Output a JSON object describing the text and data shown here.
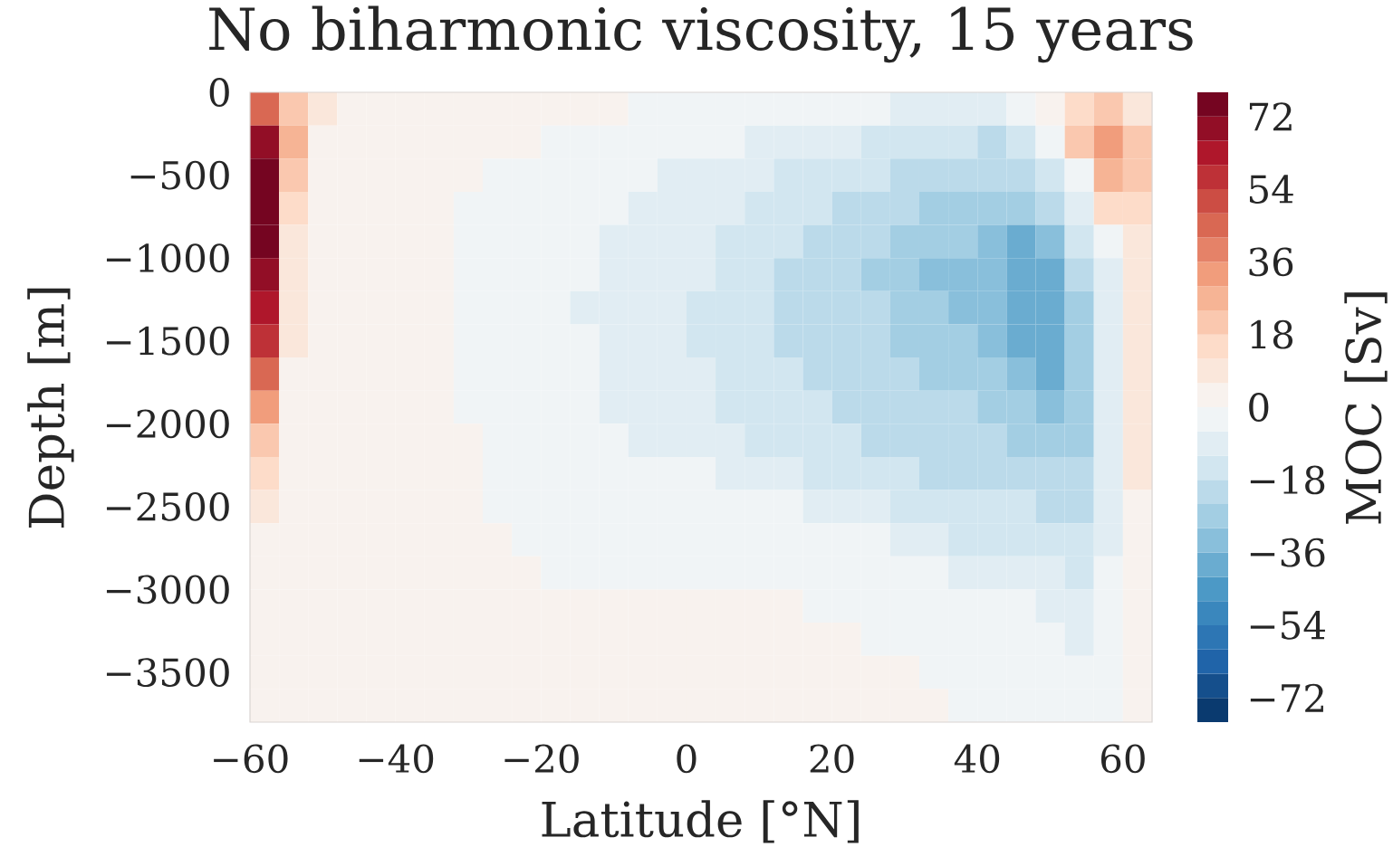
{
  "chart_data": {
    "type": "heatmap",
    "title": "No biharmonic viscosity, 15 years",
    "xlabel": "Latitude [°N]",
    "ylabel": "Depth [m]",
    "clabel": "MOC [Sv]",
    "x": [
      -58,
      -54,
      -50,
      -46,
      -42,
      -38,
      -34,
      -30,
      -26,
      -22,
      -18,
      -14,
      -10,
      -6,
      -2,
      2,
      6,
      10,
      14,
      18,
      22,
      26,
      30,
      34,
      38,
      42,
      46,
      50,
      54,
      58,
      62
    ],
    "y": [
      -100,
      -300,
      -500,
      -700,
      -900,
      -1100,
      -1300,
      -1500,
      -1700,
      -1900,
      -2100,
      -2300,
      -2500,
      -2700,
      -2900,
      -3100,
      -3300,
      -3500,
      -3700
    ],
    "cells": [
      [
        45,
        21,
        9,
        3,
        3,
        3,
        3,
        3,
        3,
        3,
        3,
        3,
        3,
        -3,
        -3,
        -3,
        -3,
        -3,
        -3,
        -3,
        -3,
        -3,
        -9,
        -9,
        -9,
        -9,
        -3,
        3,
        15,
        21,
        9
      ],
      [
        69,
        27,
        3,
        3,
        3,
        3,
        3,
        3,
        3,
        3,
        -3,
        -3,
        -3,
        -3,
        -3,
        -3,
        -3,
        -9,
        -9,
        -9,
        -9,
        -15,
        -15,
        -15,
        -15,
        -21,
        -15,
        -3,
        21,
        33,
        21
      ],
      [
        75,
        21,
        3,
        3,
        3,
        3,
        3,
        3,
        -3,
        -3,
        -3,
        -3,
        -3,
        -3,
        -9,
        -9,
        -9,
        -9,
        -15,
        -15,
        -15,
        -15,
        -21,
        -21,
        -21,
        -21,
        -21,
        -15,
        -3,
        27,
        21
      ],
      [
        75,
        15,
        3,
        3,
        3,
        3,
        3,
        -3,
        -3,
        -3,
        -3,
        -3,
        -3,
        -9,
        -9,
        -9,
        -9,
        -15,
        -15,
        -15,
        -21,
        -21,
        -21,
        -27,
        -27,
        -27,
        -27,
        -21,
        -9,
        15,
        15
      ],
      [
        75,
        9,
        3,
        3,
        3,
        3,
        3,
        -3,
        -3,
        -3,
        -3,
        -3,
        -9,
        -9,
        -9,
        -9,
        -15,
        -15,
        -15,
        -21,
        -21,
        -21,
        -27,
        -27,
        -27,
        -33,
        -39,
        -33,
        -15,
        -3,
        9
      ],
      [
        69,
        9,
        3,
        3,
        3,
        3,
        3,
        -3,
        -3,
        -3,
        -3,
        -3,
        -9,
        -9,
        -9,
        -9,
        -15,
        -15,
        -21,
        -21,
        -21,
        -27,
        -27,
        -33,
        -33,
        -33,
        -39,
        -39,
        -21,
        -9,
        9
      ],
      [
        63,
        9,
        3,
        3,
        3,
        3,
        3,
        -3,
        -3,
        -3,
        -3,
        -9,
        -9,
        -9,
        -9,
        -15,
        -15,
        -15,
        -21,
        -21,
        -21,
        -21,
        -27,
        -27,
        -33,
        -33,
        -39,
        -39,
        -27,
        -9,
        9
      ],
      [
        57,
        9,
        3,
        3,
        3,
        3,
        3,
        -3,
        -3,
        -3,
        -3,
        -3,
        -9,
        -9,
        -9,
        -15,
        -15,
        -15,
        -21,
        -21,
        -21,
        -21,
        -27,
        -27,
        -27,
        -33,
        -39,
        -39,
        -27,
        -9,
        9
      ],
      [
        45,
        3,
        3,
        3,
        3,
        3,
        3,
        -3,
        -3,
        -3,
        -3,
        -3,
        -9,
        -9,
        -9,
        -9,
        -15,
        -15,
        -15,
        -21,
        -21,
        -21,
        -21,
        -27,
        -27,
        -27,
        -33,
        -39,
        -27,
        -9,
        9
      ],
      [
        33,
        3,
        3,
        3,
        3,
        3,
        3,
        -3,
        -3,
        -3,
        -3,
        -3,
        -9,
        -9,
        -9,
        -9,
        -15,
        -15,
        -15,
        -15,
        -21,
        -21,
        -21,
        -21,
        -21,
        -27,
        -27,
        -33,
        -27,
        -9,
        9
      ],
      [
        21,
        3,
        3,
        3,
        3,
        3,
        3,
        3,
        -3,
        -3,
        -3,
        -3,
        -3,
        -9,
        -9,
        -9,
        -9,
        -15,
        -15,
        -15,
        -15,
        -21,
        -21,
        -21,
        -21,
        -21,
        -27,
        -27,
        -27,
        -9,
        9
      ],
      [
        15,
        3,
        3,
        3,
        3,
        3,
        3,
        3,
        -3,
        -3,
        -3,
        -3,
        -3,
        -3,
        -3,
        -3,
        -9,
        -9,
        -9,
        -15,
        -15,
        -15,
        -15,
        -21,
        -21,
        -21,
        -21,
        -21,
        -21,
        -9,
        9
      ],
      [
        9,
        3,
        3,
        3,
        3,
        3,
        3,
        3,
        -3,
        -3,
        -3,
        -3,
        -3,
        -3,
        -3,
        -3,
        -3,
        -3,
        -3,
        -9,
        -9,
        -9,
        -15,
        -15,
        -15,
        -15,
        -15,
        -21,
        -21,
        -9,
        3
      ],
      [
        3,
        3,
        3,
        3,
        3,
        3,
        3,
        3,
        3,
        -3,
        -3,
        -3,
        -3,
        -3,
        -3,
        -3,
        -3,
        -3,
        -3,
        -3,
        -3,
        -3,
        -9,
        -9,
        -15,
        -15,
        -15,
        -15,
        -15,
        -9,
        3
      ],
      [
        3,
        3,
        3,
        3,
        3,
        3,
        3,
        3,
        3,
        3,
        -3,
        -3,
        -3,
        -3,
        -3,
        -3,
        -3,
        -3,
        -3,
        -3,
        -3,
        -3,
        -3,
        -3,
        -9,
        -9,
        -9,
        -9,
        -15,
        -3,
        3
      ],
      [
        3,
        3,
        3,
        3,
        3,
        3,
        3,
        3,
        3,
        3,
        3,
        3,
        3,
        3,
        3,
        3,
        3,
        3,
        3,
        -3,
        -3,
        -3,
        -3,
        -3,
        -3,
        -3,
        -3,
        -9,
        -9,
        -3,
        3
      ],
      [
        3,
        3,
        3,
        3,
        3,
        3,
        3,
        3,
        3,
        3,
        3,
        3,
        3,
        3,
        3,
        3,
        3,
        3,
        3,
        3,
        3,
        -3,
        -3,
        -3,
        -3,
        -3,
        -3,
        -3,
        -9,
        -3,
        3
      ],
      [
        3,
        3,
        3,
        3,
        3,
        3,
        3,
        3,
        3,
        3,
        3,
        3,
        3,
        3,
        3,
        3,
        3,
        3,
        3,
        3,
        3,
        3,
        3,
        -3,
        -3,
        -3,
        -3,
        -3,
        -3,
        -3,
        3
      ],
      [
        3,
        3,
        3,
        3,
        3,
        3,
        3,
        3,
        3,
        3,
        3,
        3,
        3,
        3,
        3,
        3,
        3,
        3,
        3,
        3,
        3,
        3,
        3,
        3,
        -3,
        -3,
        -3,
        -3,
        -3,
        -3,
        3
      ]
    ],
    "xlim": [
      -60,
      64
    ],
    "ylim": [
      -3800,
      0
    ],
    "xticks": [
      {
        "value": -60,
        "label": "−60"
      },
      {
        "value": -40,
        "label": "−40"
      },
      {
        "value": -20,
        "label": "−20"
      },
      0,
      20,
      40,
      60
    ],
    "yticks": [
      0,
      {
        "value": -500,
        "label": "−500"
      },
      {
        "value": -1000,
        "label": "−1000"
      },
      {
        "value": -1500,
        "label": "−1500"
      },
      {
        "value": -2000,
        "label": "−2000"
      },
      {
        "value": -2500,
        "label": "−2500"
      },
      {
        "value": -3000,
        "label": "−3000"
      },
      {
        "value": -3500,
        "label": "−3500"
      }
    ],
    "clim": [
      -78,
      78
    ],
    "cticks": [
      {
        "value": -72,
        "label": "−72"
      },
      {
        "value": -54,
        "label": "−54"
      },
      {
        "value": -36,
        "label": "−36"
      },
      {
        "value": -18,
        "label": "−18"
      },
      0,
      18,
      36,
      54,
      72
    ]
  }
}
